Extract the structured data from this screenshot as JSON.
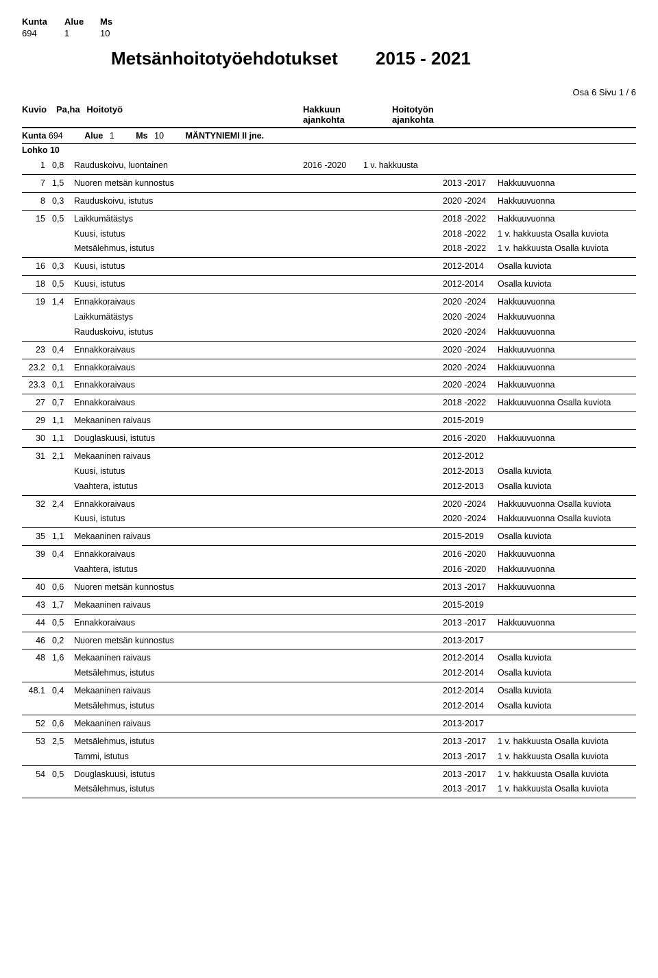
{
  "top_header": {
    "labels": {
      "kunta": "Kunta",
      "alue": "Alue",
      "ms": "Ms"
    },
    "values": {
      "kunta": "694",
      "alue": "1",
      "ms": "10"
    }
  },
  "title": {
    "main": "Metsänhoitotyöehdotukset",
    "years": "2015 - 2021"
  },
  "page_meta": "Osa 6     Sivu 1 /  6",
  "column_headers": {
    "kuvio": "Kuvio",
    "paha": "Pa,ha",
    "hoitotyo": "Hoitotyö",
    "hakkuun": "Hakkuun",
    "hakkuun2": "ajankohta",
    "hoitotyon": "Hoitotyön",
    "hoitotyon2": "ajankohta"
  },
  "meta_line": {
    "kunta_l": "Kunta",
    "kunta_v": "694",
    "alue_l": "Alue",
    "alue_v": "1",
    "ms_l": "Ms",
    "ms_v": "10",
    "name": "MÄNTYNIEMI II jne."
  },
  "lohko": "Lohko  10",
  "blocks": [
    {
      "rows": [
        {
          "kuvio": "1",
          "pa": "0,8",
          "work": "Rauduskoivu, luontainen",
          "hakkuun": "2016 -2020",
          "note1": "1 v. hakkuusta",
          "hoito": "",
          "note2": ""
        }
      ]
    },
    {
      "rows": [
        {
          "kuvio": "7",
          "pa": "1,5",
          "work": "Nuoren metsän kunnostus",
          "hakkuun": "",
          "note1": "",
          "hoito": "2013 -2017",
          "note2": "Hakkuuvuonna"
        }
      ]
    },
    {
      "rows": [
        {
          "kuvio": "8",
          "pa": "0,3",
          "work": "Rauduskoivu, istutus",
          "hakkuun": "",
          "note1": "",
          "hoito": "2020 -2024",
          "note2": "Hakkuuvuonna"
        }
      ]
    },
    {
      "rows": [
        {
          "kuvio": "15",
          "pa": "0,5",
          "work": "Laikkumätästys",
          "hakkuun": "",
          "note1": "",
          "hoito": "2018 -2022",
          "note2": "Hakkuuvuonna"
        },
        {
          "kuvio": "",
          "pa": "",
          "work": "Kuusi, istutus",
          "hakkuun": "",
          "note1": "",
          "hoito": "2018 -2022",
          "note2": "1 v. hakkuusta Osalla kuviota"
        },
        {
          "kuvio": "",
          "pa": "",
          "work": "Metsälehmus, istutus",
          "hakkuun": "",
          "note1": "",
          "hoito": "2018 -2022",
          "note2": "1 v. hakkuusta Osalla kuviota"
        }
      ]
    },
    {
      "rows": [
        {
          "kuvio": "16",
          "pa": "0,3",
          "work": "Kuusi, istutus",
          "hakkuun": "",
          "note1": "",
          "hoito": "2012-2014",
          "note2": "Osalla kuviota"
        }
      ]
    },
    {
      "rows": [
        {
          "kuvio": "18",
          "pa": "0,5",
          "work": "Kuusi, istutus",
          "hakkuun": "",
          "note1": "",
          "hoito": "2012-2014",
          "note2": "Osalla kuviota"
        }
      ]
    },
    {
      "rows": [
        {
          "kuvio": "19",
          "pa": "1,4",
          "work": "Ennakkoraivaus",
          "hakkuun": "",
          "note1": "",
          "hoito": "2020 -2024",
          "note2": "Hakkuuvuonna"
        },
        {
          "kuvio": "",
          "pa": "",
          "work": "Laikkumätästys",
          "hakkuun": "",
          "note1": "",
          "hoito": "2020 -2024",
          "note2": "Hakkuuvuonna"
        },
        {
          "kuvio": "",
          "pa": "",
          "work": "Rauduskoivu, istutus",
          "hakkuun": "",
          "note1": "",
          "hoito": "2020 -2024",
          "note2": "Hakkuuvuonna"
        }
      ]
    },
    {
      "rows": [
        {
          "kuvio": "23",
          "pa": "0,4",
          "work": "Ennakkoraivaus",
          "hakkuun": "",
          "note1": "",
          "hoito": "2020 -2024",
          "note2": "Hakkuuvuonna"
        }
      ]
    },
    {
      "rows": [
        {
          "kuvio": "23.2",
          "pa": "0,1",
          "work": "Ennakkoraivaus",
          "hakkuun": "",
          "note1": "",
          "hoito": "2020 -2024",
          "note2": "Hakkuuvuonna"
        }
      ]
    },
    {
      "rows": [
        {
          "kuvio": "23.3",
          "pa": "0,1",
          "work": "Ennakkoraivaus",
          "hakkuun": "",
          "note1": "",
          "hoito": "2020 -2024",
          "note2": "Hakkuuvuonna"
        }
      ]
    },
    {
      "rows": [
        {
          "kuvio": "27",
          "pa": "0,7",
          "work": "Ennakkoraivaus",
          "hakkuun": "",
          "note1": "",
          "hoito": "2018 -2022",
          "note2": "Hakkuuvuonna Osalla kuviota"
        }
      ]
    },
    {
      "rows": [
        {
          "kuvio": "29",
          "pa": "1,1",
          "work": "Mekaaninen raivaus",
          "hakkuun": "",
          "note1": "",
          "hoito": "2015-2019",
          "note2": ""
        }
      ]
    },
    {
      "rows": [
        {
          "kuvio": "30",
          "pa": "1,1",
          "work": "Douglaskuusi, istutus",
          "hakkuun": "",
          "note1": "",
          "hoito": "2016 -2020",
          "note2": "Hakkuuvuonna"
        }
      ]
    },
    {
      "rows": [
        {
          "kuvio": "31",
          "pa": "2,1",
          "work": "Mekaaninen raivaus",
          "hakkuun": "",
          "note1": "",
          "hoito": "2012-2012",
          "note2": ""
        },
        {
          "kuvio": "",
          "pa": "",
          "work": "Kuusi, istutus",
          "hakkuun": "",
          "note1": "",
          "hoito": "2012-2013",
          "note2": "Osalla kuviota"
        },
        {
          "kuvio": "",
          "pa": "",
          "work": "Vaahtera, istutus",
          "hakkuun": "",
          "note1": "",
          "hoito": "2012-2013",
          "note2": "Osalla kuviota"
        }
      ]
    },
    {
      "rows": [
        {
          "kuvio": "32",
          "pa": "2,4",
          "work": "Ennakkoraivaus",
          "hakkuun": "",
          "note1": "",
          "hoito": "2020 -2024",
          "note2": "Hakkuuvuonna Osalla kuviota"
        },
        {
          "kuvio": "",
          "pa": "",
          "work": "Kuusi, istutus",
          "hakkuun": "",
          "note1": "",
          "hoito": "2020 -2024",
          "note2": "Hakkuuvuonna Osalla kuviota"
        }
      ]
    },
    {
      "rows": [
        {
          "kuvio": "35",
          "pa": "1,1",
          "work": "Mekaaninen raivaus",
          "hakkuun": "",
          "note1": "",
          "hoito": "2015-2019",
          "note2": "Osalla kuviota"
        }
      ]
    },
    {
      "rows": [
        {
          "kuvio": "39",
          "pa": "0,4",
          "work": "Ennakkoraivaus",
          "hakkuun": "",
          "note1": "",
          "hoito": "2016 -2020",
          "note2": "Hakkuuvuonna"
        },
        {
          "kuvio": "",
          "pa": "",
          "work": "Vaahtera, istutus",
          "hakkuun": "",
          "note1": "",
          "hoito": "2016 -2020",
          "note2": "Hakkuuvuonna"
        }
      ]
    },
    {
      "rows": [
        {
          "kuvio": "40",
          "pa": "0,6",
          "work": "Nuoren metsän kunnostus",
          "hakkuun": "",
          "note1": "",
          "hoito": "2013 -2017",
          "note2": "Hakkuuvuonna"
        }
      ]
    },
    {
      "rows": [
        {
          "kuvio": "43",
          "pa": "1,7",
          "work": "Mekaaninen raivaus",
          "hakkuun": "",
          "note1": "",
          "hoito": "2015-2019",
          "note2": ""
        }
      ]
    },
    {
      "rows": [
        {
          "kuvio": "44",
          "pa": "0,5",
          "work": "Ennakkoraivaus",
          "hakkuun": "",
          "note1": "",
          "hoito": "2013 -2017",
          "note2": "Hakkuuvuonna"
        }
      ]
    },
    {
      "rows": [
        {
          "kuvio": "46",
          "pa": "0,2",
          "work": "Nuoren metsän kunnostus",
          "hakkuun": "",
          "note1": "",
          "hoito": "2013-2017",
          "note2": ""
        }
      ]
    },
    {
      "rows": [
        {
          "kuvio": "48",
          "pa": "1,6",
          "work": "Mekaaninen raivaus",
          "hakkuun": "",
          "note1": "",
          "hoito": "2012-2014",
          "note2": "Osalla kuviota"
        },
        {
          "kuvio": "",
          "pa": "",
          "work": "Metsälehmus, istutus",
          "hakkuun": "",
          "note1": "",
          "hoito": "2012-2014",
          "note2": "Osalla kuviota"
        }
      ]
    },
    {
      "rows": [
        {
          "kuvio": "48.1",
          "pa": "0,4",
          "work": "Mekaaninen raivaus",
          "hakkuun": "",
          "note1": "",
          "hoito": "2012-2014",
          "note2": "Osalla kuviota"
        },
        {
          "kuvio": "",
          "pa": "",
          "work": "Metsälehmus, istutus",
          "hakkuun": "",
          "note1": "",
          "hoito": "2012-2014",
          "note2": "Osalla kuviota"
        }
      ]
    },
    {
      "rows": [
        {
          "kuvio": "52",
          "pa": "0,6",
          "work": "Mekaaninen raivaus",
          "hakkuun": "",
          "note1": "",
          "hoito": "2013-2017",
          "note2": ""
        }
      ]
    },
    {
      "rows": [
        {
          "kuvio": "53",
          "pa": "2,5",
          "work": "Metsälehmus, istutus",
          "hakkuun": "",
          "note1": "",
          "hoito": "2013 -2017",
          "note2": "1 v. hakkuusta Osalla kuviota"
        },
        {
          "kuvio": "",
          "pa": "",
          "work": "Tammi, istutus",
          "hakkuun": "",
          "note1": "",
          "hoito": "2013 -2017",
          "note2": "1 v. hakkuusta Osalla kuviota"
        }
      ]
    },
    {
      "rows": [
        {
          "kuvio": "54",
          "pa": "0,5",
          "work": "Douglaskuusi, istutus",
          "hakkuun": "",
          "note1": "",
          "hoito": "2013 -2017",
          "note2": "1 v. hakkuusta Osalla kuviota"
        },
        {
          "kuvio": "",
          "pa": "",
          "work": "Metsälehmus, istutus",
          "hakkuun": "",
          "note1": "",
          "hoito": "2013 -2017",
          "note2": "1 v. hakkuusta Osalla kuviota"
        }
      ]
    }
  ]
}
